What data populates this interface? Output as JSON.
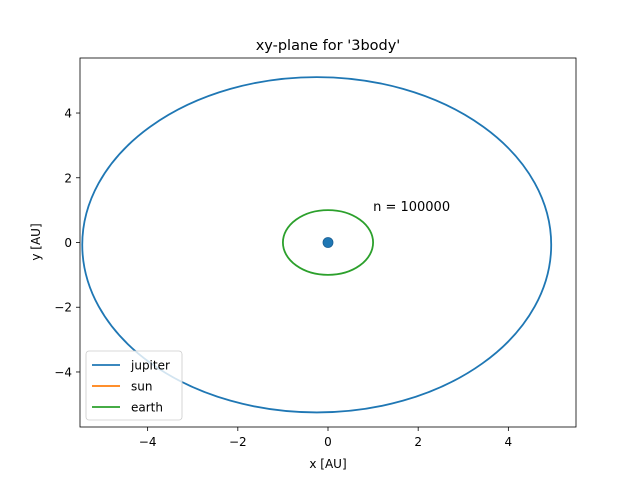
{
  "chart_data": {
    "type": "line",
    "title": "xy-plane for '3body'",
    "xlabel": "x [AU]",
    "ylabel": "y [AU]",
    "xlim": [
      -5.5,
      5.5
    ],
    "ylim": [
      -5.7,
      5.7
    ],
    "xticks": [
      -4,
      -2,
      0,
      2,
      4
    ],
    "yticks": [
      -4,
      -2,
      0,
      2,
      4
    ],
    "grid": false,
    "legend_position": "lower-left",
    "annotation": {
      "text": "n = 100000",
      "x": 1.0,
      "y": 1.1
    },
    "series": [
      {
        "name": "jupiter",
        "color": "#1f77b4",
        "shape": "ellipse",
        "center": [
          -0.25,
          -0.07
        ],
        "radii": [
          5.2,
          5.18
        ]
      },
      {
        "name": "sun",
        "color": "#ff7f0e",
        "shape": "point",
        "center": [
          0.0,
          0.0
        ]
      },
      {
        "name": "earth",
        "color": "#2ca02c",
        "shape": "ellipse",
        "center": [
          0.0,
          0.0
        ],
        "radii": [
          1.0,
          1.0
        ]
      }
    ],
    "marker": {
      "color": "#1f77b4",
      "x": 0.0,
      "y": 0.0
    }
  }
}
